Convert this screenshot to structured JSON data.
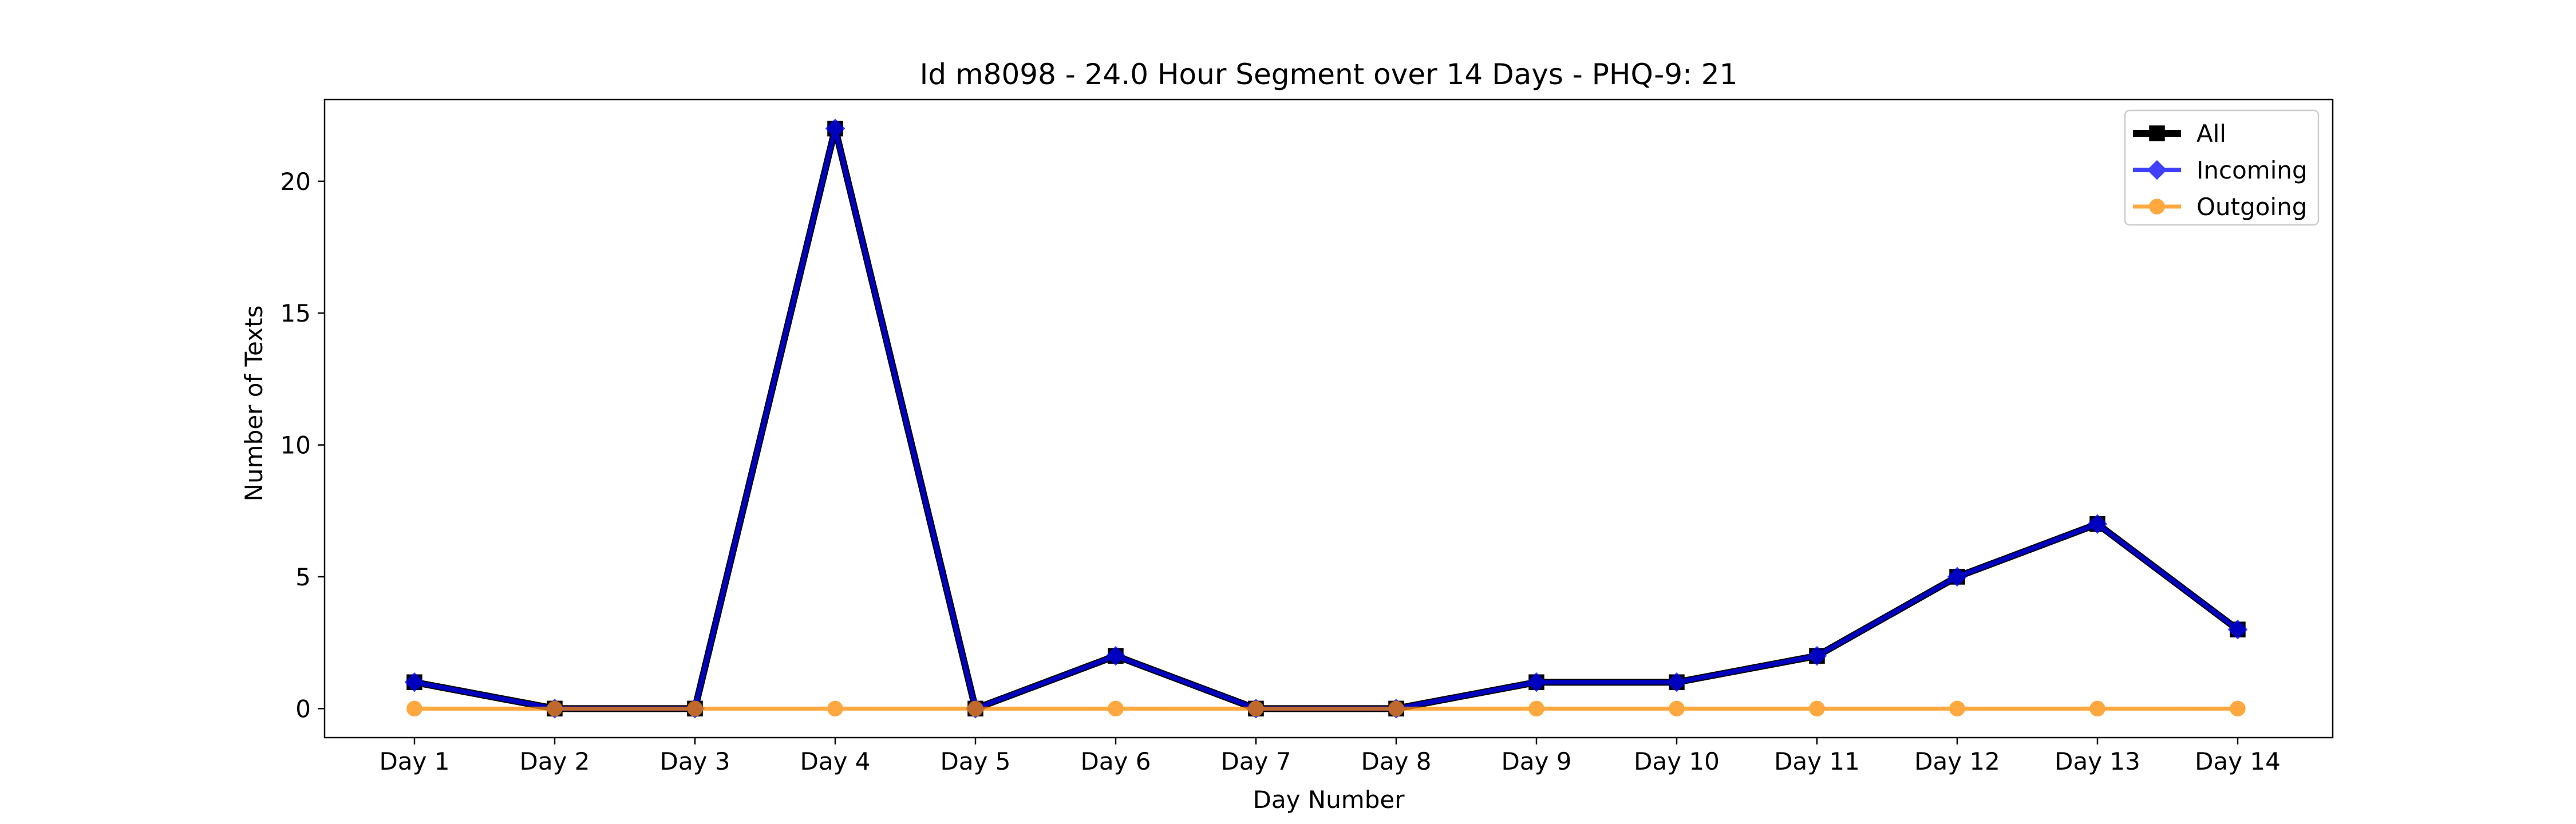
{
  "chart_data": {
    "type": "line",
    "title": "Id m8098 - 24.0 Hour Segment over 14 Days - PHQ-9: 21",
    "xlabel": "Day Number",
    "ylabel": "Number of Texts",
    "categories": [
      "Day 1",
      "Day 2",
      "Day 3",
      "Day 4",
      "Day 5",
      "Day 6",
      "Day 7",
      "Day 8",
      "Day 9",
      "Day 10",
      "Day 11",
      "Day 12",
      "Day 13",
      "Day 14"
    ],
    "ylim": [
      -1.1,
      23.1
    ],
    "yticks": [
      0,
      5,
      10,
      15,
      20
    ],
    "grid": false,
    "legend_position": "top-right",
    "series": [
      {
        "name": "All",
        "values": [
          1,
          0,
          0,
          22,
          0,
          2,
          0,
          0,
          1,
          1,
          2,
          5,
          7,
          3
        ],
        "color": "#000000",
        "marker": "square"
      },
      {
        "name": "Incoming",
        "values": [
          1,
          0,
          0,
          22,
          0,
          2,
          0,
          0,
          1,
          1,
          2,
          5,
          7,
          3
        ],
        "color": "#0000ff",
        "marker": "diamond"
      },
      {
        "name": "Outgoing",
        "values": [
          0,
          0,
          0,
          0,
          0,
          0,
          0,
          0,
          0,
          0,
          0,
          0,
          0,
          0
        ],
        "color": "#ff8c00",
        "marker": "circle"
      }
    ]
  }
}
